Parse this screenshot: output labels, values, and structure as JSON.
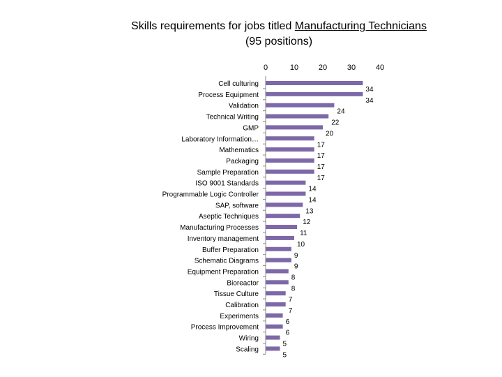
{
  "chart_data": {
    "type": "bar",
    "orientation": "horizontal",
    "title": "Skills requirements for jobs titled Manufacturing Technicians (95 positions)",
    "title_parts": {
      "line1_prefix": "Skills requirements for jobs titled ",
      "line1_underlined": "Manufacturing Technicians",
      "line2": "(95 positions)"
    },
    "categories": [
      "Cell culturing",
      "Process Equipment",
      "Validation",
      "Technical Writing",
      "GMP",
      "Laboratory Information…",
      "Mathematics",
      "Packaging",
      "Sample Preparation",
      "ISO 9001 Standards",
      "Programmable Logic Controller",
      "SAP, software",
      "Aseptic Techniques",
      "Manufacturing Processes",
      "Inventory management",
      "Buffer Preparation",
      "Schematic Diagrams",
      "Equipment Preparation",
      "Bioreactor",
      "Tissue Culture",
      "Calibration",
      "Experiments",
      "Process Improvement",
      "Wiring",
      "Scaling"
    ],
    "values": [
      34,
      34,
      24,
      22,
      20,
      17,
      17,
      17,
      17,
      14,
      14,
      13,
      12,
      11,
      10,
      9,
      9,
      8,
      8,
      7,
      7,
      6,
      6,
      5,
      5
    ],
    "xlim": [
      0,
      40
    ],
    "xticks": [
      "0",
      "10",
      "20",
      "30",
      "40"
    ],
    "axis_position": "top",
    "grid": false,
    "bar_color": "#7d68a8",
    "data_labels": true
  }
}
